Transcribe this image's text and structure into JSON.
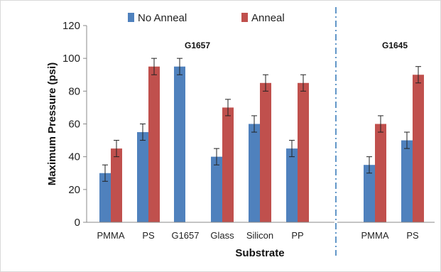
{
  "chart_data": {
    "type": "bar",
    "xlabel": "Substrate",
    "ylabel": "Maximum Pressure (psi)",
    "ylim": [
      0,
      120
    ],
    "yticks": [
      0,
      20,
      40,
      60,
      80,
      100,
      120
    ],
    "grid": false,
    "legend_position": "top",
    "categories": [
      "PMMA",
      "PS",
      "G1657",
      "Glass",
      "Silicon",
      "PP",
      "PMMA",
      "PS"
    ],
    "groups": [
      {
        "label": "G1657",
        "categories": [
          0,
          1,
          2,
          3,
          4,
          5
        ]
      },
      {
        "label": "G1645",
        "categories": [
          6,
          7
        ]
      }
    ],
    "series": [
      {
        "name": "No Anneal",
        "color": "#4f81bd",
        "values": [
          30,
          55,
          95,
          40,
          60,
          45,
          35,
          50
        ],
        "errors": [
          5,
          5,
          5,
          5,
          5,
          5,
          5,
          5
        ]
      },
      {
        "name": "Anneal",
        "color": "#c0504d",
        "values": [
          45,
          95,
          null,
          70,
          85,
          85,
          60,
          90
        ],
        "errors": [
          5,
          5,
          null,
          5,
          5,
          5,
          5,
          5
        ]
      }
    ]
  }
}
